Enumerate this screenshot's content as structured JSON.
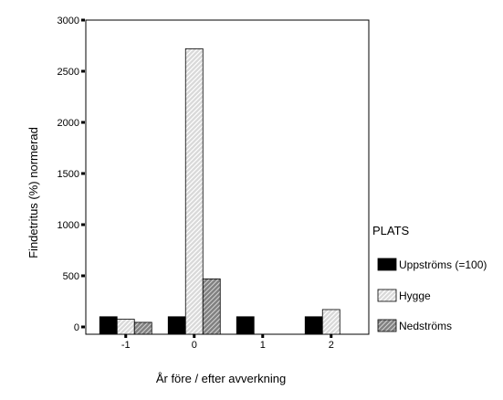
{
  "chart_data": {
    "type": "bar",
    "categories": [
      "-1",
      "0",
      "1",
      "2"
    ],
    "series": [
      {
        "name": "Uppströms (=100)",
        "values": [
          100,
          100,
          100,
          100
        ],
        "fill": "solid-black"
      },
      {
        "name": "Hygge",
        "values": [
          75,
          2720,
          0,
          170
        ],
        "fill": "light-gray-hatch"
      },
      {
        "name": "Nedströms",
        "values": [
          45,
          470,
          0,
          0
        ],
        "fill": "dark-gray-hatch"
      }
    ],
    "xlabel": "År före / efter avverkning",
    "ylabel": "Findetritus (%) normerad",
    "ylim": [
      0,
      3000
    ],
    "yticks": [
      0,
      500,
      1000,
      1500,
      2000,
      2500,
      3000
    ],
    "legend": {
      "title": "PLATS",
      "placement": "right"
    },
    "grid": false
  },
  "colors": {
    "uppstroms": "#000000",
    "hygge_fill": "#d9d9d9",
    "nedstroms_fill": "#808080",
    "axis": "#000000"
  }
}
